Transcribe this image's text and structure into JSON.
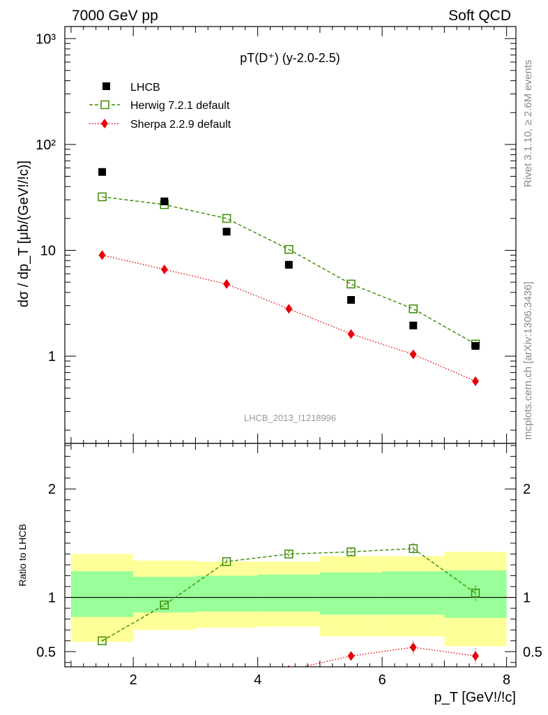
{
  "header": {
    "left": "7000 GeV pp",
    "right": "Soft QCD"
  },
  "side_labels": {
    "rivet": "Rivet 3.1.10, ≥ 2.6M events",
    "mcplots": "mcplots.cern.ch [arXiv:1306.3436]"
  },
  "chart_data": [
    {
      "type": "scatter",
      "title": "pT(D⁺) (y-2.0-2.5)",
      "ylabel": "dσ / dp_T [μb/(GeV!/!c)]",
      "xlabel": "",
      "yscale": "log",
      "ylim": [
        0.15,
        1300
      ],
      "xlim": [
        0.9,
        8.15
      ],
      "yticks": [
        {
          "v": 1,
          "label": "1"
        },
        {
          "v": 10,
          "label": "10"
        },
        {
          "v": 100,
          "label": "10²"
        },
        {
          "v": 1000,
          "label": "10³"
        }
      ],
      "watermark": "LHCB_2013_I1218996",
      "legend": {
        "placement": "top-left"
      },
      "x": [
        1.5,
        2.5,
        3.5,
        4.5,
        5.5,
        6.5,
        7.5
      ],
      "series": [
        {
          "name": "LHCB",
          "marker": "filled-square",
          "color": "#000000",
          "values": [
            55,
            29,
            15,
            7.3,
            3.4,
            1.95,
            1.25
          ]
        },
        {
          "name": "Herwig 7.2.1 default",
          "marker": "open-square",
          "line": "dashed",
          "color": "#3a8a00",
          "values": [
            32,
            27,
            20,
            10.2,
            4.8,
            2.8,
            1.3
          ]
        },
        {
          "name": "Sherpa 2.2.9 default",
          "marker": "diamond",
          "line": "dotted",
          "color": "#e8000b",
          "values": [
            9,
            6.6,
            4.8,
            2.8,
            1.62,
            1.04,
            0.58
          ],
          "errors": [
            0.3,
            0.2,
            0.15,
            0.1,
            0.06,
            0.08,
            0.06
          ]
        }
      ]
    },
    {
      "type": "scatter",
      "ylabel": "Ratio to LHCB",
      "xlabel": "p_T [GeV!/!c]",
      "ylim": [
        0.36,
        2.42
      ],
      "xlim": [
        0.9,
        8.15
      ],
      "xticks": [
        2,
        4,
        6,
        8
      ],
      "yticks": [
        0.5,
        1,
        2
      ],
      "reference": 1,
      "bands": [
        {
          "x0": 1.0,
          "x1": 2.0,
          "inner": [
            0.82,
            1.24
          ],
          "outer": [
            0.59,
            1.4
          ]
        },
        {
          "x0": 2.0,
          "x1": 3.0,
          "inner": [
            0.86,
            1.19
          ],
          "outer": [
            0.7,
            1.34
          ]
        },
        {
          "x0": 3.0,
          "x1": 4.0,
          "inner": [
            0.87,
            1.2
          ],
          "outer": [
            0.72,
            1.33
          ]
        },
        {
          "x0": 4.0,
          "x1": 5.0,
          "inner": [
            0.87,
            1.21
          ],
          "outer": [
            0.73,
            1.33
          ]
        },
        {
          "x0": 5.0,
          "x1": 6.0,
          "inner": [
            0.84,
            1.23
          ],
          "outer": [
            0.64,
            1.38
          ]
        },
        {
          "x0": 6.0,
          "x1": 7.0,
          "inner": [
            0.84,
            1.24
          ],
          "outer": [
            0.64,
            1.38
          ]
        },
        {
          "x0": 7.0,
          "x1": 8.0,
          "inner": [
            0.81,
            1.25
          ],
          "outer": [
            0.55,
            1.42
          ]
        }
      ],
      "x": [
        1.5,
        2.5,
        3.5,
        4.5,
        5.5,
        6.5,
        7.5
      ],
      "series": [
        {
          "name": "Herwig 7.2.1 default",
          "marker": "open-square",
          "line": "dashed",
          "color": "#3a8a00",
          "values": [
            0.6,
            0.93,
            1.33,
            1.4,
            1.42,
            1.45,
            1.04
          ],
          "errors": [
            0.01,
            0.02,
            0.02,
            0.03,
            0.04,
            0.05,
            0.07
          ]
        },
        {
          "name": "Sherpa 2.2.9 default",
          "marker": "diamond",
          "line": "dotted",
          "color": "#e8000b",
          "values": [
            null,
            null,
            null,
            0.33,
            0.46,
            0.54,
            0.46
          ],
          "errors": [
            0,
            0,
            0,
            0.02,
            0.04,
            0.06,
            0.07
          ]
        }
      ]
    }
  ]
}
